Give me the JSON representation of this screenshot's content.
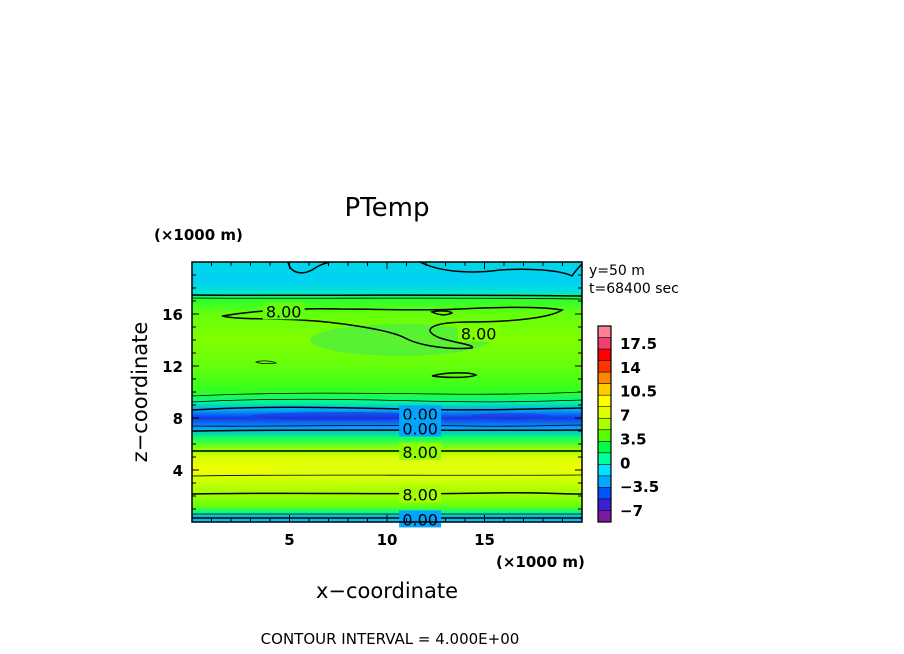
{
  "chart_data": {
    "type": "heatmap",
    "title": "PTemp",
    "xlabel": "x−coordinate",
    "ylabel": "z−coordinate",
    "x_unit": "(×1000 m)",
    "y_unit": "(×1000 m)",
    "xlim": [
      0,
      20
    ],
    "ylim": [
      0,
      20
    ],
    "xticks": [
      5,
      10,
      15
    ],
    "yticks": [
      4,
      8,
      12,
      16
    ],
    "annotations": [
      "y=50 m",
      "t=68400 sec"
    ],
    "footer": "CONTOUR INTERVAL = 4.000E+00",
    "colorbar": {
      "labels": [
        "17.5",
        "14",
        "10.5",
        "7",
        "3.5",
        "0",
        "−3.5",
        "−7"
      ],
      "colors": [
        "#7a1a9e",
        "#3a1fd6",
        "#0055ff",
        "#00aaff",
        "#00e5ff",
        "#00ff99",
        "#00ff44",
        "#55ff00",
        "#aaff00",
        "#ddff00",
        "#ffff00",
        "#ffcc00",
        "#ff8800",
        "#ff3300",
        "#ff0000",
        "#f04070",
        "#ff8090"
      ]
    },
    "z_profile": [
      {
        "z": 0.0,
        "value": 1
      },
      {
        "z": 0.3,
        "value": -1
      },
      {
        "z": 0.7,
        "value": 3
      },
      {
        "z": 1.2,
        "value": 7
      },
      {
        "z": 2.2,
        "value": 8.5
      },
      {
        "z": 4.0,
        "value": 10.5
      },
      {
        "z": 5.0,
        "value": 10
      },
      {
        "z": 5.6,
        "value": 8
      },
      {
        "z": 6.5,
        "value": 4
      },
      {
        "z": 7.2,
        "value": -1
      },
      {
        "z": 8.0,
        "value": -4.5
      },
      {
        "z": 8.6,
        "value": -1
      },
      {
        "z": 9.2,
        "value": 3
      },
      {
        "z": 10.0,
        "value": 6
      },
      {
        "z": 12.0,
        "value": 7
      },
      {
        "z": 14.0,
        "value": 7.5
      },
      {
        "z": 16.0,
        "value": 7
      },
      {
        "z": 17.2,
        "value": 5.5
      },
      {
        "z": 17.6,
        "value": 2
      },
      {
        "z": 18.5,
        "value": 0.5
      },
      {
        "z": 20.0,
        "value": 1
      }
    ],
    "contour_labels": [
      {
        "text": "8.00",
        "x": 4.7,
        "z": 16.2
      },
      {
        "text": "8.00",
        "x": 14.7,
        "z": 14.5
      },
      {
        "text": "0.00",
        "x": 11.7,
        "z": 8.3
      },
      {
        "text": "0.00",
        "x": 11.7,
        "z": 7.2
      },
      {
        "text": "8.00",
        "x": 11.7,
        "z": 5.4
      },
      {
        "text": "8.00",
        "x": 11.7,
        "z": 2.1
      },
      {
        "text": "0.00",
        "x": 11.7,
        "z": 0.2
      }
    ]
  }
}
